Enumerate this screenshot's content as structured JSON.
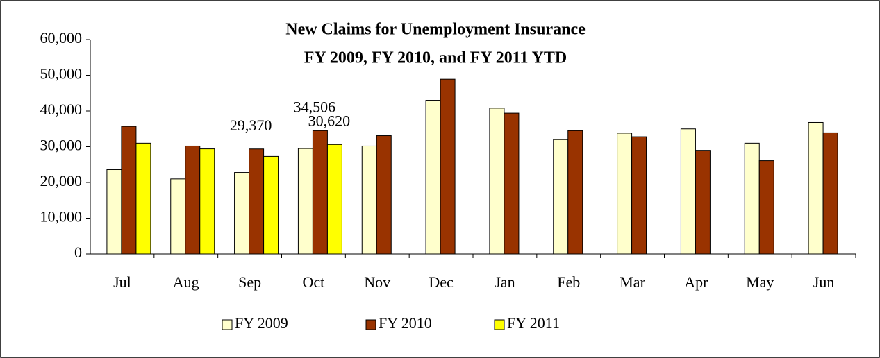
{
  "chart_data": {
    "type": "bar",
    "title": "New Claims for Unemployment Insurance",
    "subtitle": "FY 2009, FY 2010, and FY 2011 YTD",
    "categories": [
      "Jul",
      "Aug",
      "Sep",
      "Oct",
      "Nov",
      "Dec",
      "Jan",
      "Feb",
      "Mar",
      "Apr",
      "May",
      "Jun"
    ],
    "series": [
      {
        "name": "FY 2009",
        "color": "#ffffcc",
        "values": [
          23600,
          21000,
          22800,
          29500,
          30200,
          43000,
          40800,
          32000,
          33800,
          35000,
          31000,
          36800
        ]
      },
      {
        "name": "FY 2010",
        "color": "#993300",
        "values": [
          35700,
          30200,
          29370,
          34506,
          33100,
          48900,
          39400,
          34500,
          32800,
          29000,
          26100,
          33900
        ],
        "value_labels": [
          null,
          null,
          "29,370",
          "34,506",
          null,
          null,
          null,
          null,
          null,
          null,
          null,
          null
        ]
      },
      {
        "name": "FY 2011",
        "color": "#ffff00",
        "values": [
          31000,
          29400,
          27300,
          30620,
          null,
          null,
          null,
          null,
          null,
          null,
          null,
          null
        ],
        "value_labels": [
          null,
          null,
          null,
          "30,620",
          null,
          null,
          null,
          null,
          null,
          null,
          null,
          null
        ]
      }
    ],
    "ylim": [
      0,
      60000
    ],
    "yticks": [
      0,
      {
        "value": 10000,
        "label": "10,000"
      },
      {
        "value": 20000,
        "label": "20,000"
      },
      {
        "value": 30000,
        "label": "30,000"
      },
      {
        "value": 40000,
        "label": "40,000"
      },
      {
        "value": 50000,
        "label": "50,000"
      },
      {
        "value": 60000,
        "label": "60,000"
      }
    ],
    "grid": false,
    "legend": "bottom"
  }
}
